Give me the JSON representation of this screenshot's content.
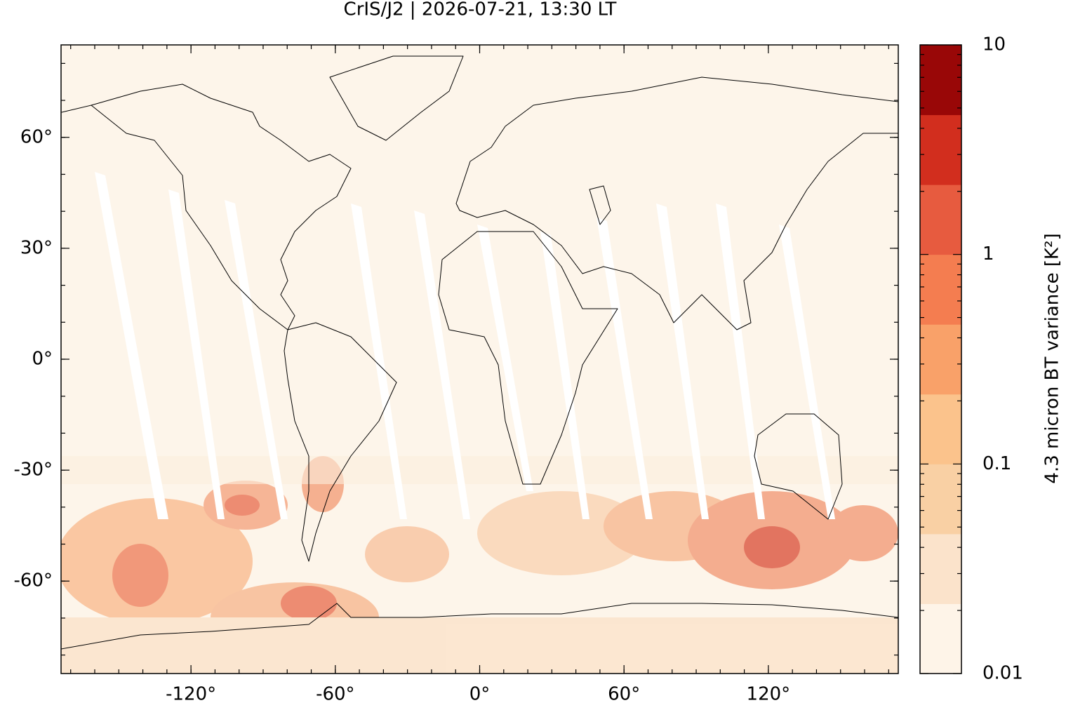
{
  "map": {
    "title": "CrIS/J2 | 2026-07-21, 13:30 LT",
    "xlim": [
      -174,
      174
    ],
    "ylim": [
      -85,
      85
    ],
    "xticks": [
      {
        "value": -120,
        "label": "-120°"
      },
      {
        "value": -60,
        "label": "-60°"
      },
      {
        "value": 0,
        "label": "0°"
      },
      {
        "value": 60,
        "label": "60°"
      },
      {
        "value": 120,
        "label": "120°"
      }
    ],
    "yticks": [
      {
        "value": 60,
        "label": "60°"
      },
      {
        "value": 30,
        "label": "30°"
      },
      {
        "value": 0,
        "label": "0°"
      },
      {
        "value": -30,
        "label": "-30°"
      },
      {
        "value": -60,
        "label": "-60°"
      }
    ],
    "colorbar": {
      "label": "4.3 micron BT variance [K²]",
      "log_scale": true,
      "lim": [
        0.01,
        10
      ],
      "ticks": [
        10,
        1,
        0.1,
        0.01
      ],
      "colors": [
        "#fef4e8",
        "#fbe3cb",
        "#f9d0a4",
        "#fbc38c",
        "#f9a169",
        "#f47d50",
        "#e75b3f",
        "#d22e1e",
        "#990707"
      ]
    }
  }
}
